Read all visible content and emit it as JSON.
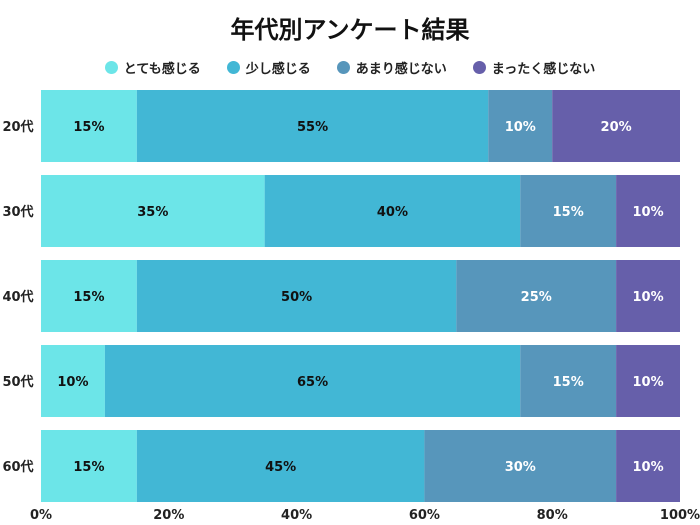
{
  "chart_data": {
    "type": "bar",
    "orientation": "horizontal",
    "stacked": true,
    "title": "年代別アンケート結果",
    "categories": [
      "20代",
      "30代",
      "40代",
      "50代",
      "60代"
    ],
    "series": [
      {
        "name": "とても感じる",
        "color": "#6ce5e8",
        "values": [
          15,
          35,
          15,
          10,
          15
        ]
      },
      {
        "name": "少し感じる",
        "color": "#42b7d5",
        "values": [
          55,
          40,
          50,
          65,
          45
        ]
      },
      {
        "name": "あまり感じない",
        "color": "#5796bb",
        "values": [
          10,
          15,
          25,
          15,
          30
        ]
      },
      {
        "name": "まったく感じない",
        "color": "#665faa",
        "values": [
          20,
          10,
          10,
          10,
          10
        ]
      }
    ],
    "xlim": [
      0,
      100
    ],
    "xticks": [
      "0%",
      "20%",
      "40%",
      "60%",
      "80%",
      "100%"
    ],
    "legend": "top",
    "grid": false
  }
}
